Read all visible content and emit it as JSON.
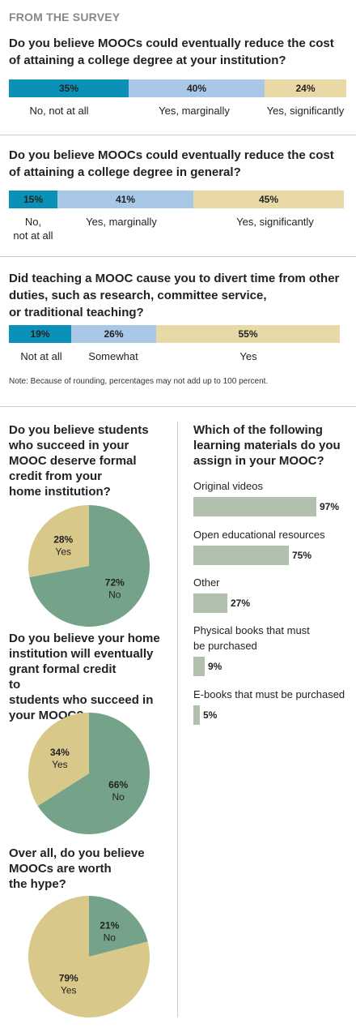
{
  "kicker": "FROM THE SURVEY",
  "colors": {
    "no": "#0b91b8",
    "marginal": "#a9c8e8",
    "significant": "#e8d9a6",
    "pie_green": "#75a38a",
    "pie_tan": "#d8c88a",
    "material_bar": "#b1c1ad"
  },
  "chart_data": [
    {
      "type": "bar",
      "title": "Do you believe MOOCs could eventually reduce the cost of attaining a college degree at your institution?",
      "categories": [
        "No, not at all",
        "Yes, marginally",
        "Yes, significantly"
      ],
      "values": [
        35,
        40,
        24
      ],
      "value_labels": [
        "35%",
        "40%",
        "24%"
      ]
    },
    {
      "type": "bar",
      "title": "Do you believe MOOCs could eventually reduce the cost of attaining a college degree in general?",
      "categories": [
        "No, not at all",
        "Yes, marginally",
        "Yes, significantly"
      ],
      "values": [
        15,
        41,
        45
      ],
      "value_labels": [
        "15%",
        "41%",
        "45%"
      ]
    },
    {
      "type": "bar",
      "title": "Did teaching a MOOC cause you to divert time from other duties, such as research, committee service, or traditional teaching?",
      "categories": [
        "Not at all",
        "Somewhat",
        "Yes"
      ],
      "values": [
        19,
        26,
        55
      ],
      "value_labels": [
        "19%",
        "26%",
        "55%"
      ]
    },
    {
      "type": "pie",
      "title": "Do you believe students who succeed in your MOOC deserve formal credit from your home institution?",
      "categories": [
        "Yes",
        "No"
      ],
      "values": [
        28,
        72
      ],
      "value_labels": [
        "28%",
        "72%"
      ]
    },
    {
      "type": "pie",
      "title": "Do you believe your home institution will eventually grant formal credit to students who succeed in your MOOC?",
      "categories": [
        "Yes",
        "No"
      ],
      "values": [
        34,
        66
      ],
      "value_labels": [
        "34%",
        "66%"
      ]
    },
    {
      "type": "pie",
      "title": "Over all, do you believe MOOCs are worth the hype?",
      "categories": [
        "Yes",
        "No"
      ],
      "values": [
        79,
        21
      ],
      "value_labels": [
        "79%",
        "21%"
      ]
    },
    {
      "type": "bar",
      "orientation": "horizontal",
      "title": "Which of the following learning materials do you assign in your MOOC?",
      "categories": [
        "Original videos",
        "Open educational resources",
        "Other",
        "Physical books that must be purchased",
        "E-books that must be purchased"
      ],
      "values": [
        97,
        75,
        27,
        9,
        5
      ],
      "value_labels": [
        "97%",
        "75%",
        "27%",
        "9%",
        "5%"
      ]
    }
  ],
  "note": "Note: Because of rounding, percentages may not add up to 100 percent."
}
